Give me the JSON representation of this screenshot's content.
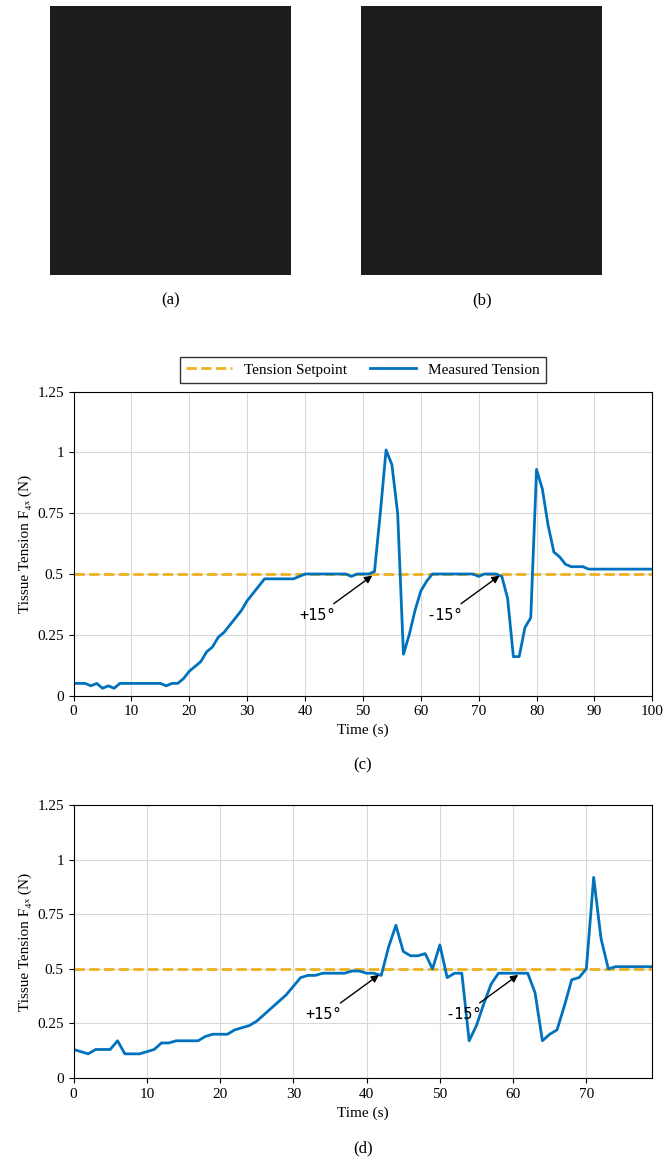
{
  "photos": [
    {
      "caption": "(a)"
    },
    {
      "caption": "(b)"
    }
  ],
  "chart_data": [
    {
      "type": "line",
      "caption": "(c)",
      "xlabel": "Time (s)",
      "ylabel": "Tissue Tension F₄ₓ (N)",
      "xlim": [
        0,
        100
      ],
      "xticks": [
        0,
        10,
        20,
        30,
        40,
        50,
        60,
        70,
        80,
        90,
        100
      ],
      "ylim": [
        0,
        1.25
      ],
      "yticks": [
        0,
        0.25,
        0.5,
        0.75,
        1,
        1.25
      ],
      "grid": true,
      "legend": "upper center",
      "series": [
        {
          "name": "Tension Setpoint",
          "color": "#EDB120",
          "line_style": "dashed",
          "x": [
            0,
            100
          ],
          "values": [
            0.5,
            0.5
          ]
        },
        {
          "name": "Measured Tension",
          "color": "#0072BD",
          "line_style": "solid",
          "x": [
            0,
            1,
            2,
            3,
            4,
            5,
            6,
            7,
            8,
            9,
            10,
            11,
            12,
            13,
            14,
            15,
            16,
            17,
            18,
            19,
            20,
            21,
            22,
            23,
            24,
            25,
            26,
            27,
            28,
            29,
            30,
            31,
            32,
            33,
            34,
            35,
            36,
            37,
            38,
            39,
            40,
            41,
            42,
            43,
            44,
            45,
            46,
            47,
            48,
            49,
            50,
            51,
            52,
            53,
            54,
            55,
            56,
            57,
            58,
            59,
            60,
            61,
            62,
            63,
            64,
            65,
            66,
            67,
            68,
            69,
            70,
            71,
            72,
            73,
            74,
            75,
            76,
            77,
            78,
            79,
            80,
            81,
            82,
            83,
            84,
            85,
            86,
            87,
            88,
            89,
            90,
            91,
            92,
            93,
            94,
            95,
            96,
            97,
            98,
            99,
            100
          ],
          "values": [
            0.05,
            0.05,
            0.05,
            0.04,
            0.05,
            0.03,
            0.04,
            0.03,
            0.05,
            0.05,
            0.05,
            0.05,
            0.05,
            0.05,
            0.05,
            0.05,
            0.04,
            0.05,
            0.05,
            0.07,
            0.1,
            0.12,
            0.14,
            0.18,
            0.2,
            0.24,
            0.26,
            0.29,
            0.32,
            0.35,
            0.39,
            0.42,
            0.45,
            0.48,
            0.48,
            0.48,
            0.48,
            0.48,
            0.48,
            0.49,
            0.5,
            0.5,
            0.5,
            0.5,
            0.5,
            0.5,
            0.5,
            0.5,
            0.49,
            0.5,
            0.5,
            0.5,
            0.51,
            0.75,
            1.01,
            0.95,
            0.75,
            0.17,
            0.25,
            0.35,
            0.43,
            0.47,
            0.5,
            0.5,
            0.5,
            0.5,
            0.5,
            0.5,
            0.5,
            0.5,
            0.49,
            0.5,
            0.5,
            0.5,
            0.49,
            0.4,
            0.16,
            0.16,
            0.28,
            0.32,
            0.93,
            0.85,
            0.7,
            0.59,
            0.57,
            0.54,
            0.53,
            0.53,
            0.53,
            0.52,
            0.52,
            0.52,
            0.52,
            0.52,
            0.52,
            0.52,
            0.52,
            0.52,
            0.52,
            0.52,
            0.52
          ]
        }
      ],
      "annotations": [
        {
          "text": "+15°",
          "x": 52,
          "y": 0.5
        },
        {
          "text": "-15°",
          "x": 74,
          "y": 0.5
        }
      ]
    },
    {
      "type": "line",
      "caption": "(d)",
      "xlabel": "Time (s)",
      "ylabel": "Tissue Tension F₄ₓ (N)",
      "xlim": [
        0,
        79
      ],
      "xticks": [
        0,
        10,
        20,
        30,
        40,
        50,
        60,
        70
      ],
      "ylim": [
        0,
        1.25
      ],
      "yticks": [
        0,
        0.25,
        0.5,
        0.75,
        1,
        1.25
      ],
      "grid": true,
      "series": [
        {
          "color": "#EDB120",
          "line_style": "dashed",
          "x": [
            0,
            79
          ],
          "values": [
            0.5,
            0.5
          ]
        },
        {
          "color": "#0072BD",
          "line_style": "solid",
          "x": [
            0,
            1,
            2,
            3,
            4,
            5,
            6,
            7,
            8,
            9,
            10,
            11,
            12,
            13,
            14,
            15,
            16,
            17,
            18,
            19,
            20,
            21,
            22,
            23,
            24,
            25,
            26,
            27,
            28,
            29,
            30,
            31,
            32,
            33,
            34,
            35,
            36,
            37,
            38,
            39,
            40,
            41,
            42,
            43,
            44,
            45,
            46,
            47,
            48,
            49,
            50,
            51,
            52,
            53,
            54,
            55,
            56,
            57,
            58,
            59,
            60,
            61,
            62,
            63,
            64,
            65,
            66,
            67,
            68,
            69,
            70,
            71,
            72,
            73,
            74,
            75,
            76,
            77,
            78,
            79
          ],
          "values": [
            0.13,
            0.12,
            0.11,
            0.13,
            0.13,
            0.13,
            0.17,
            0.11,
            0.11,
            0.11,
            0.12,
            0.13,
            0.16,
            0.16,
            0.17,
            0.17,
            0.17,
            0.17,
            0.19,
            0.2,
            0.2,
            0.2,
            0.22,
            0.23,
            0.24,
            0.26,
            0.29,
            0.32,
            0.35,
            0.38,
            0.42,
            0.46,
            0.47,
            0.47,
            0.48,
            0.48,
            0.48,
            0.48,
            0.49,
            0.49,
            0.48,
            0.48,
            0.47,
            0.6,
            0.7,
            0.58,
            0.56,
            0.56,
            0.57,
            0.5,
            0.61,
            0.46,
            0.48,
            0.48,
            0.17,
            0.24,
            0.34,
            0.43,
            0.48,
            0.48,
            0.48,
            0.48,
            0.48,
            0.39,
            0.17,
            0.2,
            0.22,
            0.33,
            0.45,
            0.46,
            0.5,
            0.92,
            0.64,
            0.5,
            0.51,
            0.51,
            0.51,
            0.51,
            0.51,
            0.51
          ]
        }
      ],
      "annotations": [
        {
          "text": "+15°",
          "x": 42,
          "y": 0.48
        },
        {
          "text": "-15°",
          "x": 61,
          "y": 0.48
        }
      ]
    }
  ]
}
